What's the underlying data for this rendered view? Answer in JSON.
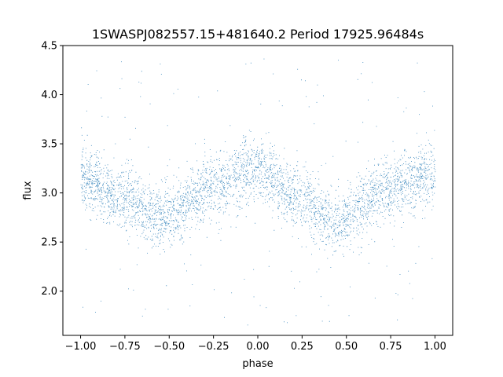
{
  "chart_data": {
    "type": "scatter",
    "title": "1SWASPJ082557.15+481640.2 Period 17925.96484s",
    "xlabel": "phase",
    "ylabel": "flux",
    "xlim": [
      -1.1,
      1.1
    ],
    "ylim": [
      1.55,
      4.5
    ],
    "x_ticks": [
      -1.0,
      -0.75,
      -0.5,
      -0.25,
      0.0,
      0.25,
      0.5,
      0.75,
      1.0
    ],
    "x_tick_labels": [
      "−1.00",
      "−0.75",
      "−0.50",
      "−0.25",
      "0.00",
      "0.25",
      "0.50",
      "0.75",
      "1.00"
    ],
    "y_ticks": [
      2.0,
      2.5,
      3.0,
      3.5,
      4.0,
      4.5
    ],
    "y_tick_labels": [
      "2.0",
      "2.5",
      "3.0",
      "3.5",
      "4.0",
      "4.5"
    ],
    "grid": false,
    "legend": "none",
    "point_color": "#1f77b4",
    "series": [
      {
        "x_range": [
          -1.0,
          1.0
        ],
        "mean_flux_at_phase": {
          "phase": [
            -1.0,
            -0.75,
            -0.55,
            -0.25,
            -0.05,
            0.25,
            0.45,
            0.75,
            1.0
          ],
          "flux": [
            3.15,
            2.95,
            2.75,
            3.05,
            3.25,
            2.95,
            2.7,
            3.05,
            3.2
          ]
        },
        "band_halfwidth": 0.35
      }
    ]
  }
}
